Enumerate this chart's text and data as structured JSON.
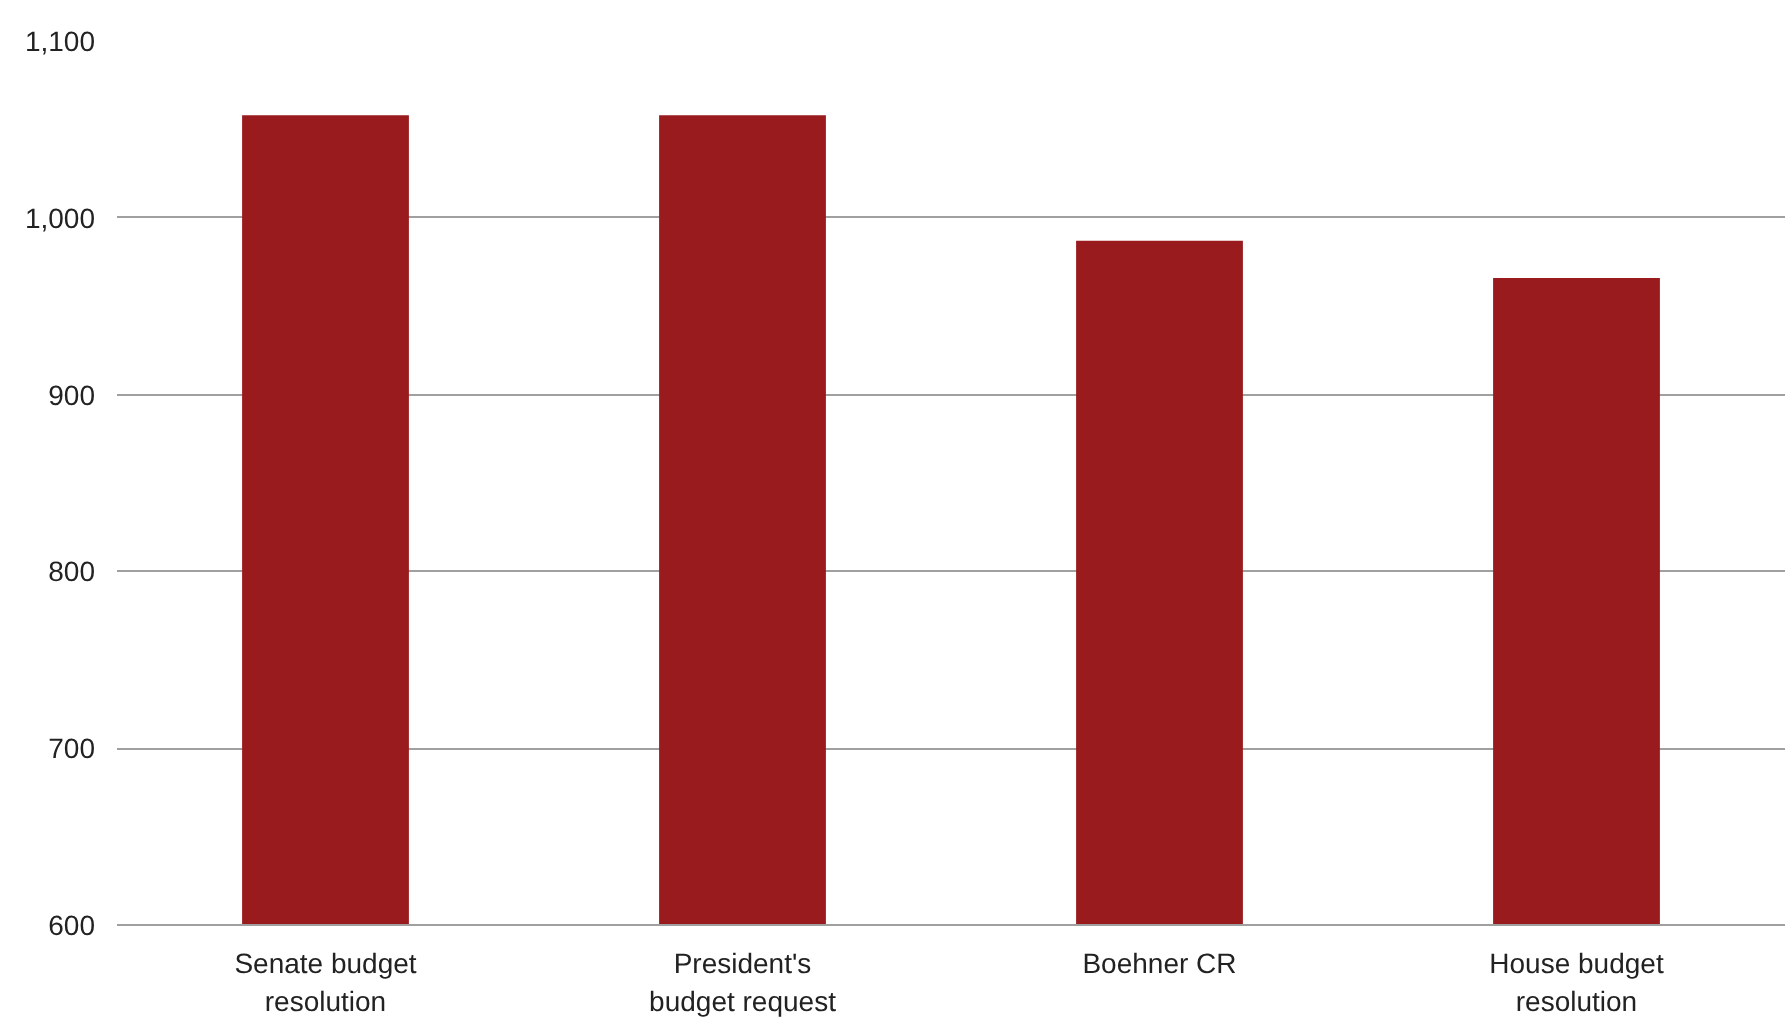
{
  "chart_data": {
    "type": "bar",
    "categories": [
      "Senate budget resolution",
      "President's budget request",
      "Boehner CR",
      "House budget resolution"
    ],
    "values": [
      1058,
      1058,
      987,
      966
    ],
    "color": "#991b1e",
    "ylim": [
      600,
      1100
    ],
    "yticks": [
      600,
      700,
      800,
      900,
      {
        "value": 1000,
        "label": "1,000"
      },
      {
        "value": 1100,
        "label": "1,100"
      }
    ],
    "grid": "y"
  }
}
